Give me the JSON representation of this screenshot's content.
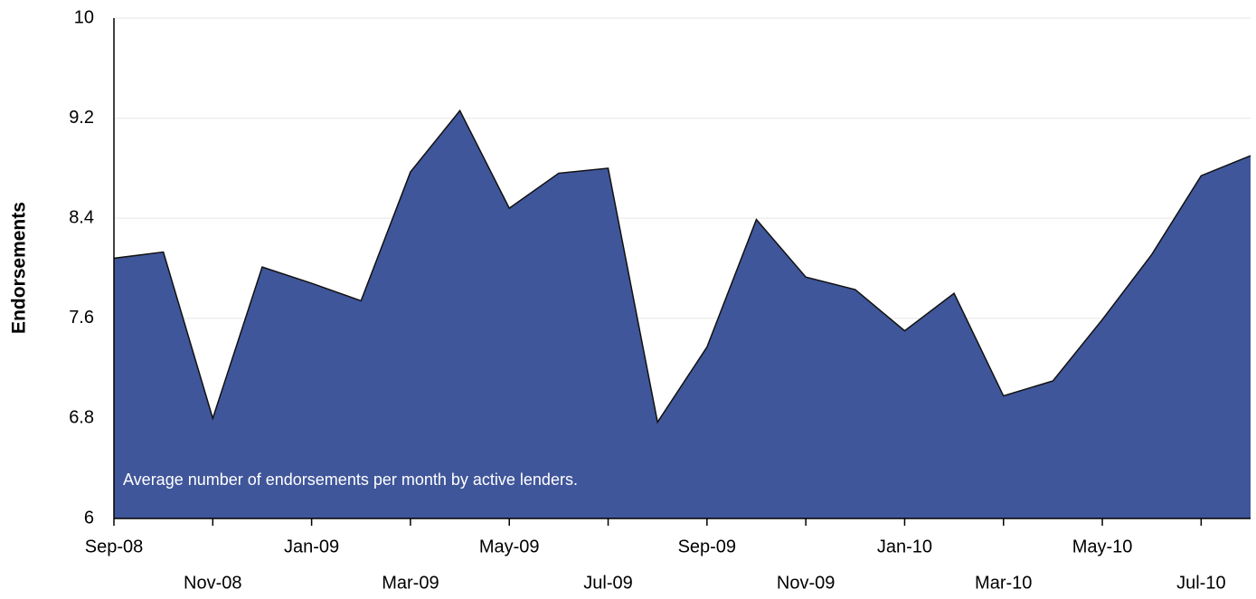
{
  "chart_data": {
    "type": "area",
    "y_label": "Endorsements",
    "annotation": "Average number of endorsements per month by active lenders.",
    "categories": [
      "Sep-08",
      null,
      "Nov-08",
      null,
      "Jan-09",
      null,
      "Mar-09",
      null,
      "May-09",
      null,
      "Jul-09",
      null,
      "Sep-09",
      null,
      "Nov-09",
      null,
      "Jan-10",
      null,
      "Mar-10",
      null,
      "May-10",
      null,
      "Jul-10",
      null
    ],
    "values": [
      8.08,
      8.13,
      6.8,
      8.01,
      7.88,
      7.74,
      8.77,
      9.26,
      8.48,
      8.76,
      8.8,
      6.77,
      7.37,
      8.39,
      7.93,
      7.83,
      7.5,
      7.8,
      6.98,
      7.1,
      7.59,
      8.11,
      8.74,
      8.9
    ],
    "color": "#40569a",
    "ylim": [
      6,
      10
    ],
    "yticks": [
      6,
      6.8,
      7.6,
      8.4,
      9.2,
      10
    ],
    "grid": true
  }
}
